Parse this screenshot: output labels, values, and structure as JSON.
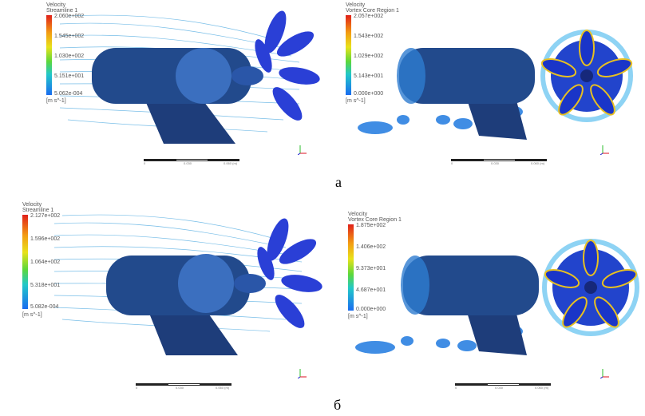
{
  "panels": [
    {
      "legend": {
        "title1": "Velocity",
        "title2": "Streamline 1",
        "ticks": [
          "2.060e+002",
          "1.545e+002",
          "1.030e+002",
          "5.151e+001",
          "5.062e-004"
        ],
        "unit": "[m s^-1]"
      },
      "scale_labels": [
        "0",
        "0.030",
        "0.060 (m)",
        "0.015",
        "0.045"
      ]
    },
    {
      "legend": {
        "title1": "Velocity",
        "title2": "Vortex Core Region 1",
        "ticks": [
          "2.057e+002",
          "1.543e+002",
          "1.029e+002",
          "5.143e+001",
          "0.000e+000"
        ],
        "unit": "[m s^-1]"
      },
      "scale_labels": [
        "0",
        "0.030",
        "0.060 (m)",
        "0.015",
        "0.045"
      ]
    },
    {
      "legend": {
        "title1": "Velocity",
        "title2": "Streamline 1",
        "ticks": [
          "2.127e+002",
          "1.596e+002",
          "1.064e+002",
          "5.318e+001",
          "5.082e-004"
        ],
        "unit": "[m s^-1]"
      },
      "scale_labels": [
        "0",
        "0.030",
        "0.060 (m)",
        "0.015",
        "0.045"
      ]
    },
    {
      "legend": {
        "title1": "Velocity",
        "title2": "Vortex Core Region 1",
        "ticks": [
          "1.875e+002",
          "1.406e+002",
          "9.373e+001",
          "4.687e+001",
          "0.000e+000"
        ],
        "unit": "[m s^-1]"
      },
      "scale_labels": [
        "0",
        "0.030",
        "0.060 (m)",
        "0.015",
        "0.045"
      ]
    }
  ],
  "captions": [
    "а",
    "б"
  ]
}
